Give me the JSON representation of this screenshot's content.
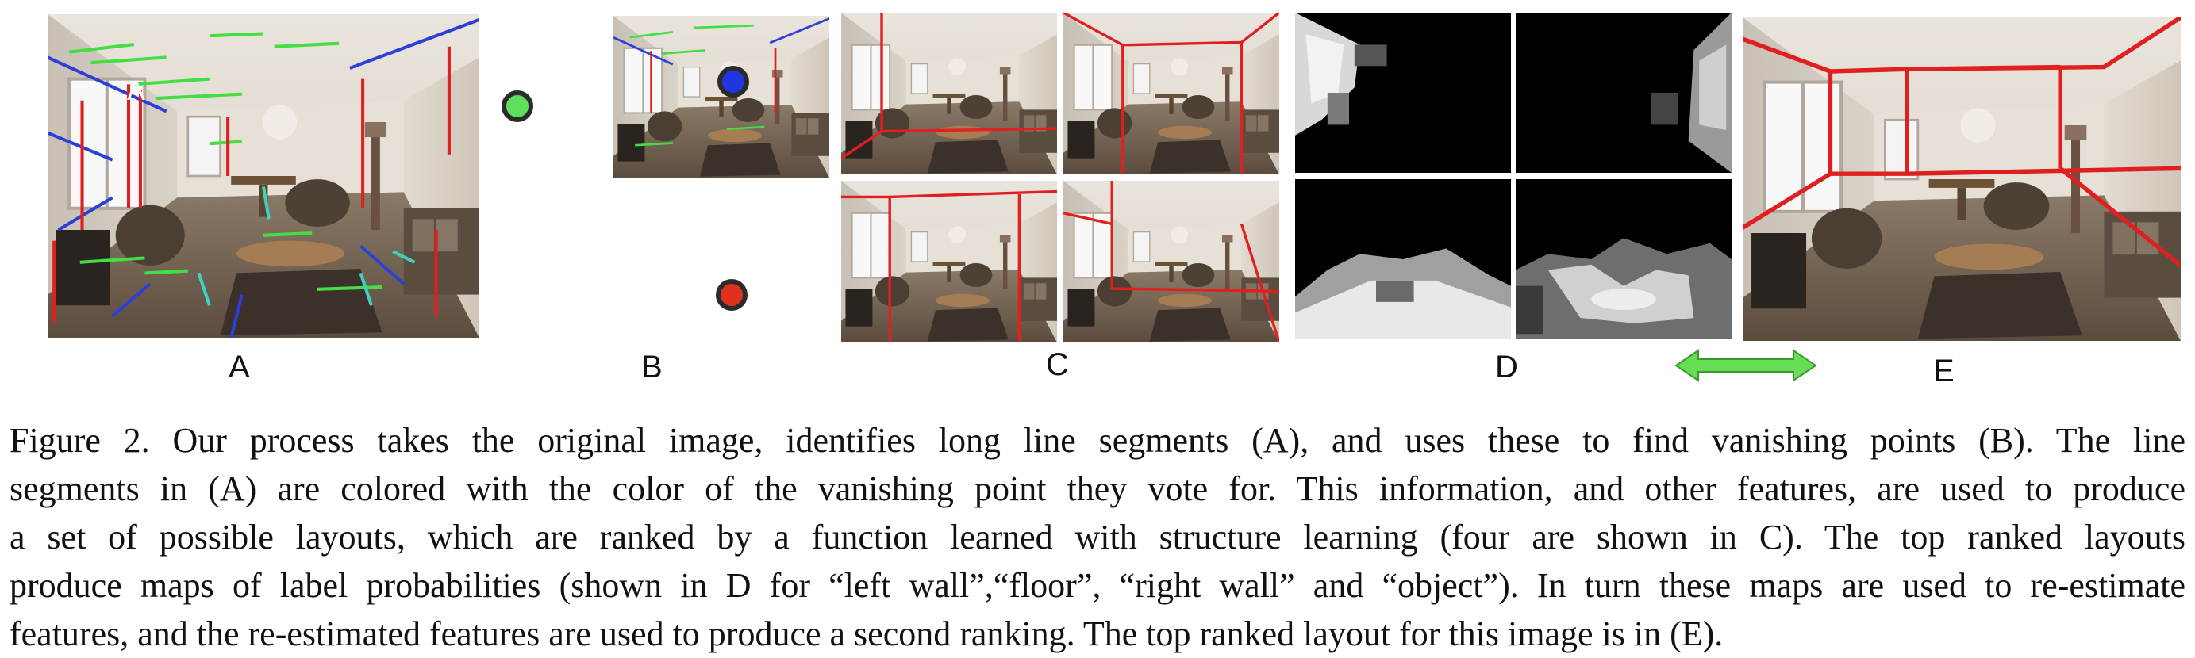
{
  "figure": {
    "panel_labels": {
      "a": "A",
      "b": "B",
      "c": "C",
      "d": "D",
      "e": "E"
    },
    "overlay_label_a": "A",
    "colors": {
      "line_green": "#44dd44",
      "line_blue": "#2c3fd6",
      "line_red": "#e02020",
      "line_cyan": "#40d0c0",
      "vp_green": "#5ee05e",
      "vp_blue": "#2036e0",
      "vp_red": "#e03020",
      "arrow_green": "#66dd55"
    },
    "caption_lines": [
      "Figure 2. Our process takes the original image, identifies long line segments (A), and uses these to find vanishing points (B). The line",
      "segments in (A) are colored with the color of the vanishing point they vote for. This information, and other features, are used to produce",
      "a set of possible layouts, which are ranked by a function learned with structure learning (four are shown in C). The top ranked layouts",
      "produce maps of label probabilities (shown in D for “left wall”,“floor”, “right wall” and “object”). In turn these maps are used to re-estimate",
      "features, and the re-estimated features are used to produce a second ranking. The top ranked layout for this image is in (E)."
    ]
  }
}
